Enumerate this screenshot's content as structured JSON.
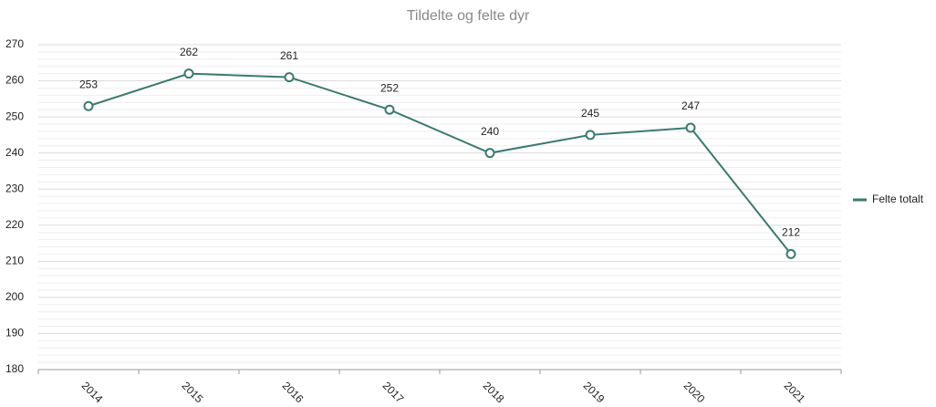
{
  "chart_data": {
    "type": "line",
    "title": "Tildelte og felte dyr",
    "categories": [
      "2014",
      "2015",
      "2016",
      "2017",
      "2018",
      "2019",
      "2020",
      "2021"
    ],
    "series": [
      {
        "name": "Felte totalt",
        "color": "#3b7a6e",
        "values": [
          253,
          262,
          261,
          252,
          240,
          245,
          247,
          212
        ]
      }
    ],
    "ylim": [
      180,
      270
    ],
    "yticks": [
      180,
      190,
      200,
      210,
      220,
      230,
      240,
      250,
      260,
      270
    ],
    "grid": true,
    "legend": "right"
  }
}
